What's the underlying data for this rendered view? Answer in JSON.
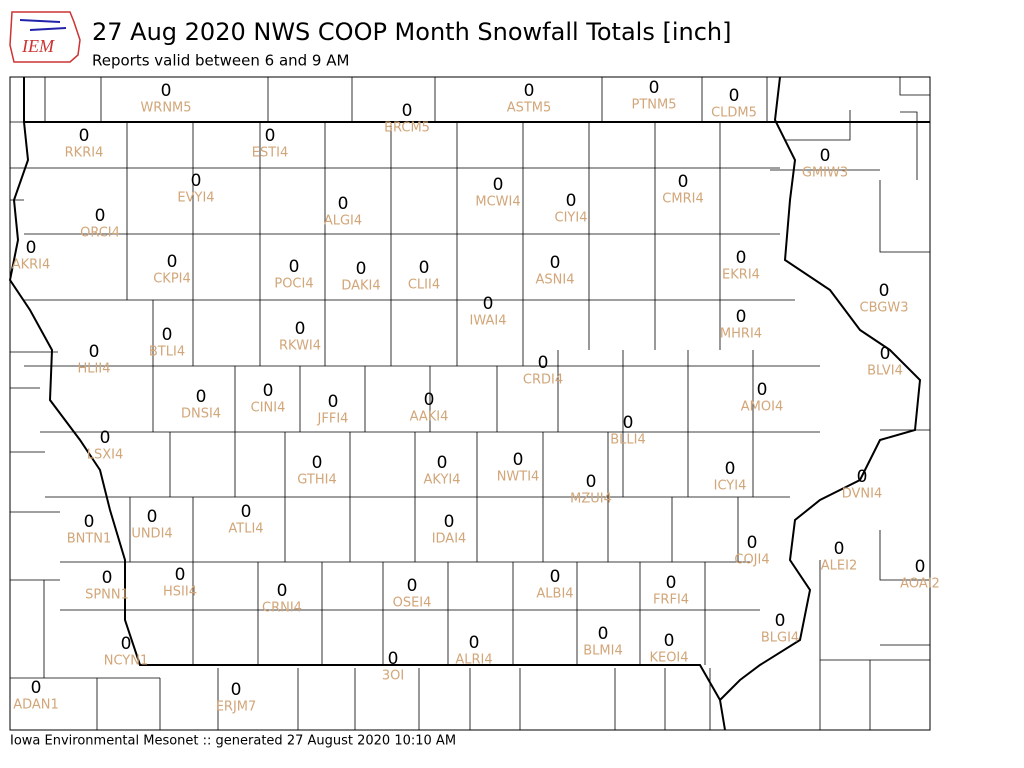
{
  "header": {
    "logo": "IEM",
    "title": "27 Aug 2020 NWS COOP Month Snowfall Totals [inch]",
    "subtitle": "Reports valid between 6 and 9 AM"
  },
  "stations": [
    {
      "id": "WRNM5",
      "value": 0
    },
    {
      "id": "BRCM5",
      "value": 0
    },
    {
      "id": "ASTM5",
      "value": 0
    },
    {
      "id": "PTNM5",
      "value": 0
    },
    {
      "id": "CLDM5",
      "value": 0
    },
    {
      "id": "RKRI4",
      "value": 0
    },
    {
      "id": "ESTI4",
      "value": 0
    },
    {
      "id": "GMIW3",
      "value": 0
    },
    {
      "id": "EVYI4",
      "value": 0
    },
    {
      "id": "MCWI4",
      "value": 0
    },
    {
      "id": "CMRI4",
      "value": 0
    },
    {
      "id": "CIYI4",
      "value": 0
    },
    {
      "id": "ALGI4",
      "value": 0
    },
    {
      "id": "ORCI4",
      "value": 0
    },
    {
      "id": "AKRI4",
      "value": 0
    },
    {
      "id": "CKPI4",
      "value": 0
    },
    {
      "id": "POCI4",
      "value": 0
    },
    {
      "id": "DAKI4",
      "value": 0
    },
    {
      "id": "CLII4",
      "value": 0
    },
    {
      "id": "ASNI4",
      "value": 0
    },
    {
      "id": "EKRI4",
      "value": 0
    },
    {
      "id": "CBGW3",
      "value": 0
    },
    {
      "id": "IWAI4",
      "value": 0
    },
    {
      "id": "MHRI4",
      "value": 0
    },
    {
      "id": "RKWI4",
      "value": 0
    },
    {
      "id": "BTLI4",
      "value": 0
    },
    {
      "id": "HLII4",
      "value": 0
    },
    {
      "id": "BLVI4",
      "value": 0
    },
    {
      "id": "CRDI4",
      "value": 0
    },
    {
      "id": "AMOI4",
      "value": 0
    },
    {
      "id": "DNSI4",
      "value": 0
    },
    {
      "id": "CINI4",
      "value": 0
    },
    {
      "id": "JFFI4",
      "value": 0
    },
    {
      "id": "AAKI4",
      "value": 0
    },
    {
      "id": "BLLI4",
      "value": 0
    },
    {
      "id": "LSXI4",
      "value": 0
    },
    {
      "id": "GTHI4",
      "value": 0
    },
    {
      "id": "AKYI4",
      "value": 0
    },
    {
      "id": "NWTI4",
      "value": 0
    },
    {
      "id": "ICYI4",
      "value": 0
    },
    {
      "id": "MZUI4",
      "value": 0
    },
    {
      "id": "DVNI4",
      "value": 0
    },
    {
      "id": "ATLI4",
      "value": 0
    },
    {
      "id": "BNTN1",
      "value": 0
    },
    {
      "id": "UNDI4",
      "value": 0
    },
    {
      "id": "IDAI4",
      "value": 0
    },
    {
      "id": "COJI4",
      "value": 0
    },
    {
      "id": "ALEI2",
      "value": 0
    },
    {
      "id": "AOAI2",
      "value": 0
    },
    {
      "id": "HSII4",
      "value": 0
    },
    {
      "id": "SPNN1",
      "value": 0
    },
    {
      "id": "ALBI4",
      "value": 0
    },
    {
      "id": "FRFI4",
      "value": 0
    },
    {
      "id": "OSEI4",
      "value": 0
    },
    {
      "id": "CRNI4",
      "value": 0
    },
    {
      "id": "BLGI4",
      "value": 0
    },
    {
      "id": "BLMI4",
      "value": 0
    },
    {
      "id": "KEOI4",
      "value": 0
    },
    {
      "id": "ALRI4",
      "value": 0
    },
    {
      "id": "NCYN1",
      "value": 0
    },
    {
      "id": "3OI",
      "value": 0
    },
    {
      "id": "ADAN1",
      "value": 0
    },
    {
      "id": "ERJM7",
      "value": 0
    }
  ],
  "footer": "Iowa Environmental Mesonet :: generated 27 August 2020 10:10 AM"
}
